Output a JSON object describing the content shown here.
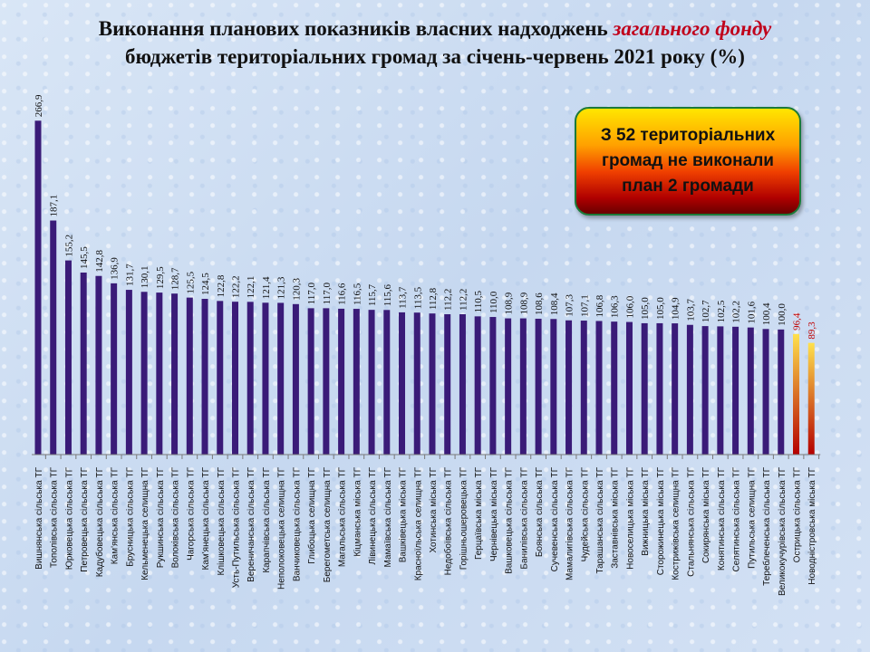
{
  "title": {
    "line1_start": "Виконання планових показників власних надходжень ",
    "line1_accent": "загального фонду",
    "line2": "бюджетів територіальних громад за січень-червень 2021 року (%)"
  },
  "callout": {
    "text": "З 52 територіальних громад не виконали план 2 громади"
  },
  "colors": {
    "bar_main": "#3a1b78",
    "bar_below_plan_top": "#ffe14d",
    "bar_below_plan_bottom": "#b40000",
    "label_main": "#111111",
    "label_below_plan": "#c00000"
  },
  "chart_data": {
    "type": "bar",
    "ylim": [
      0,
      270
    ],
    "grid": false,
    "categories": [
      "Вишнянська сільська ТГ",
      "Тополівська сільська ТГ",
      "Юрковецька сільська ТГ",
      "Петровецька сільська ТГ",
      "Кадубовецька сільська ТГ",
      "Кам'янська сільська ТГ",
      "Брусницька сільська ТГ",
      "Кельменецька селищна ТГ",
      "Рукшинська сільська ТГ",
      "Волоківська сільська ТГ",
      "Чагорська сільська ТГ",
      "Кам'янецька сільська ТГ",
      "Клішковецька сільська ТГ",
      "Усть-Путильська сільська ТГ",
      "Вереничанська сільська ТГ",
      "Карапчівська сільська ТГ",
      "Неполоковецька селищна ТГ",
      "Ванчиковецька сільська ТГ",
      "Глибоцька селищна ТГ",
      "Берегометська селищна ТГ",
      "Магальська сільська ТГ",
      "Кіцманська міська ТГ",
      "Лівинецька сільська ТГ",
      "Мамаївська сільська ТГ",
      "Вашківецька міська ТГ",
      "Красноїльська селищна ТГ",
      "Хотинська міська ТГ",
      "Недобоївська сільська ТГ",
      "Горішньошеровецька ТГ",
      "Герцаївська міська ТГ",
      "Чернівецька міська ТГ",
      "Вашковецька сільська ТГ",
      "Банилівська сільська ТГ",
      "Боянська сільська ТГ",
      "Сучевенська сільська ТГ",
      "Мамалигівська сільська ТГ",
      "Чудейська сільська ТГ",
      "Тарашанська сільська ТГ",
      "Заставнівська міська ТГ",
      "Новоселицька міська ТГ",
      "Вижницька міська ТГ",
      "Сторожинецька міська ТГ",
      "Кострижівська селищна ТГ",
      "Стальнянська сільська ТГ",
      "Сокирянська міська ТГ",
      "Конятинська сільська ТГ",
      "Селятинська сільська ТГ",
      "Путильська селищна ТГ",
      "Тереблеченська сільська ТГ",
      "Великокучурівська сільська ТГ",
      "Острицька сільська ТГ",
      "Новодністровська міська ТГ"
    ],
    "values": [
      266.9,
      187.1,
      155.2,
      145.5,
      142.8,
      136.9,
      131.7,
      130.1,
      129.5,
      128.7,
      125.5,
      124.5,
      122.8,
      122.2,
      122.1,
      121.4,
      121.3,
      120.3,
      117.0,
      117.0,
      116.6,
      116.5,
      115.7,
      115.6,
      113.7,
      113.5,
      112.8,
      112.2,
      112.2,
      110.5,
      110.0,
      108.9,
      108.9,
      108.6,
      108.4,
      107.3,
      107.1,
      106.8,
      106.3,
      106.0,
      105.0,
      105.0,
      104.9,
      103.7,
      102.7,
      102.5,
      102.2,
      101.6,
      100.4,
      100.0,
      96.4,
      89.3
    ],
    "value_labels": [
      "266,9",
      "187,1",
      "155,2",
      "145,5",
      "142,8",
      "136,9",
      "131,7",
      "130,1",
      "129,5",
      "128,7",
      "125,5",
      "124,5",
      "122,8",
      "122,2",
      "122,1",
      "121,4",
      "121,3",
      "120,3",
      "117,0",
      "117,0",
      "116,6",
      "116,5",
      "115,7",
      "115,6",
      "113,7",
      "113,5",
      "112,8",
      "112,2",
      "112,2",
      "110,5",
      "110,0",
      "108,9",
      "108,9",
      "108,6",
      "108,4",
      "107,3",
      "107,1",
      "106,8",
      "106,3",
      "106,0",
      "105,0",
      "105,0",
      "104,9",
      "103,7",
      "102,7",
      "102,5",
      "102,2",
      "101,6",
      "100,4",
      "100,0",
      "96,4",
      "89,3"
    ],
    "plan_threshold": 100
  }
}
